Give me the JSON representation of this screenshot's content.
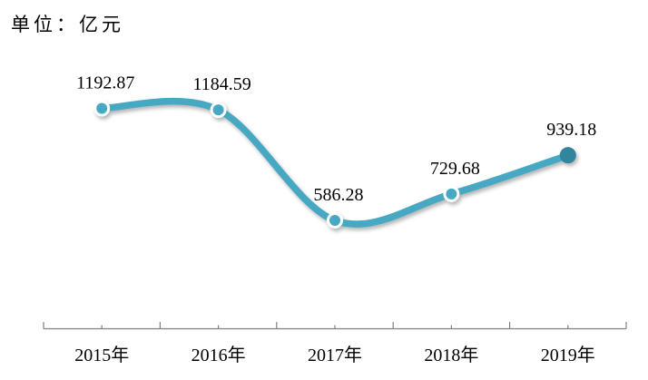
{
  "chart_data": {
    "type": "line",
    "title": "单位：亿元",
    "categories": [
      "2015年",
      "2016年",
      "2017年",
      "2018年",
      "2019年"
    ],
    "values": [
      1192.87,
      1184.59,
      586.28,
      729.68,
      939.18
    ],
    "data_labels": [
      "1192.87",
      "1184.59",
      "586.28",
      "729.68",
      "939.18"
    ],
    "xlabel": "",
    "ylabel": "",
    "ylim": [
      0,
      1600
    ],
    "smooth": true,
    "grid": false,
    "legend": "none",
    "y_axis_visible": false,
    "colors": {
      "line": "#47A8C3",
      "marker": "#47A8C3",
      "marker_ring": "#FFFFFF",
      "last_marker": "#31859C",
      "axis": "#808080",
      "text": "#000000"
    }
  }
}
